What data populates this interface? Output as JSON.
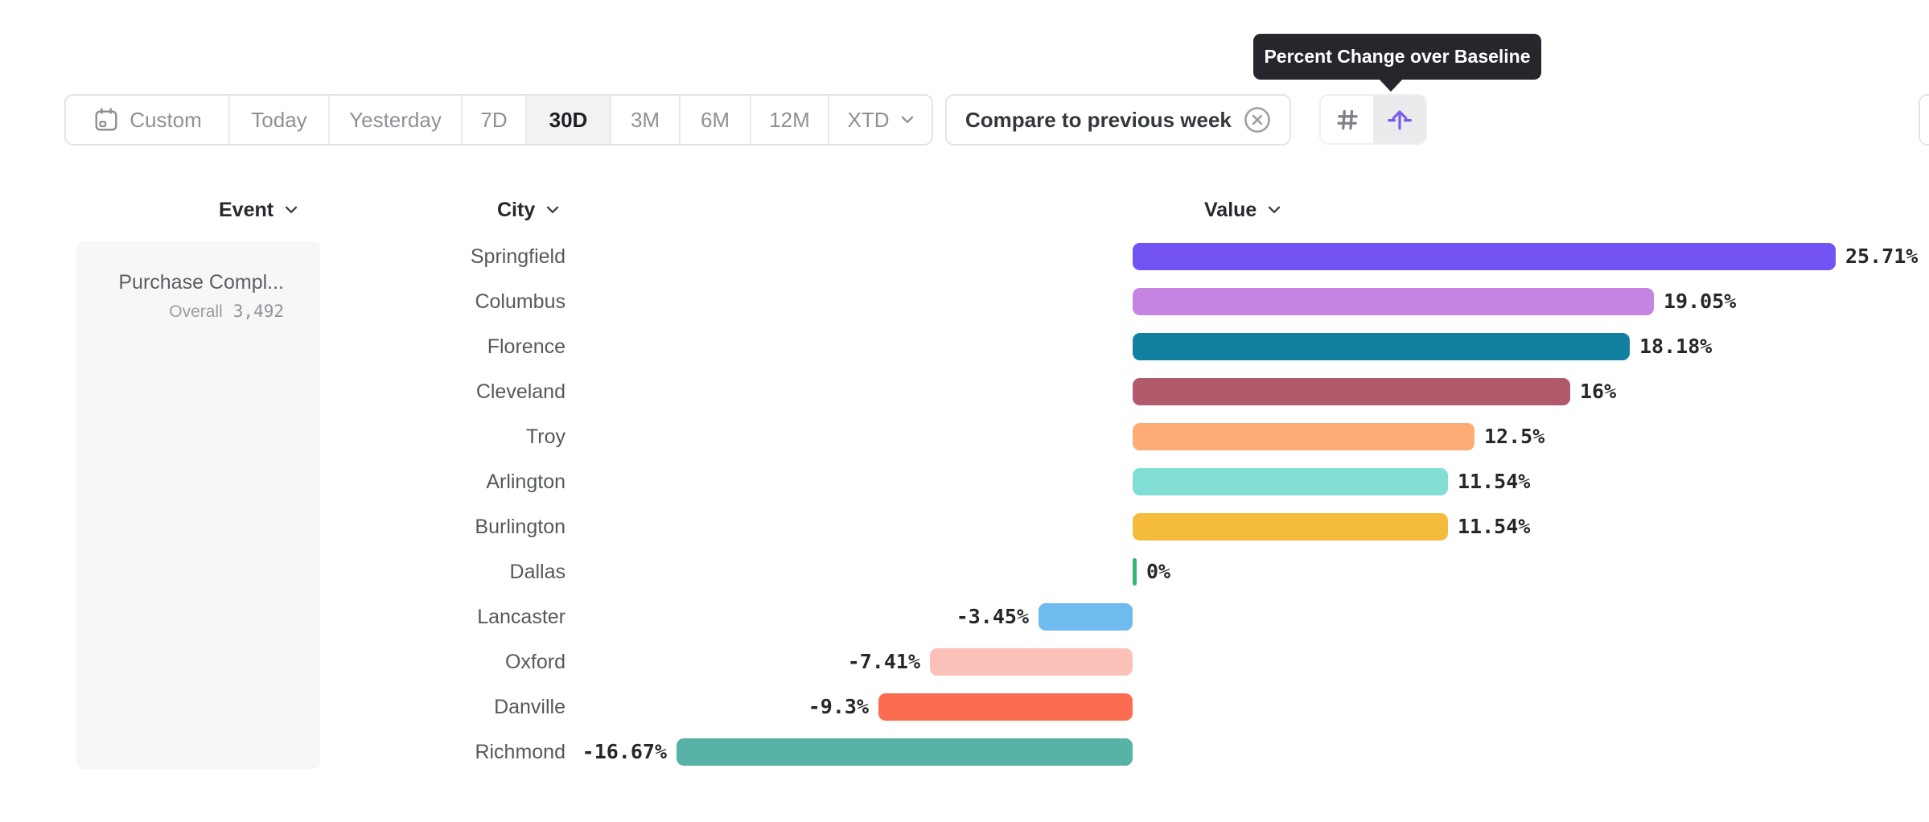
{
  "toolbar": {
    "date_ranges": [
      {
        "label": "Custom",
        "icon": "calendar-icon",
        "selected": false
      },
      {
        "label": "Today",
        "selected": false
      },
      {
        "label": "Yesterday",
        "selected": false
      },
      {
        "label": "7D",
        "selected": false
      },
      {
        "label": "30D",
        "selected": true
      },
      {
        "label": "3M",
        "selected": false
      },
      {
        "label": "6M",
        "selected": false
      },
      {
        "label": "12M",
        "selected": false
      },
      {
        "label": "XTD",
        "selected": false,
        "has_chevron": true
      }
    ],
    "compare_chip": {
      "label": "Compare to previous week",
      "close_icon": "circle-x-icon"
    },
    "view_toggles": [
      {
        "icon": "hash-icon",
        "selected": false
      },
      {
        "icon": "percent-change-icon",
        "selected": true,
        "accent_color": "#7a5cf0"
      }
    ]
  },
  "tooltip": {
    "text": "Percent Change over Baseline",
    "background": "#26272d"
  },
  "columns": {
    "event": "Event",
    "city": "City",
    "value": "Value"
  },
  "event_panel": {
    "title": "Purchase Compl...",
    "overall_label": "Overall",
    "overall_value": "3,492"
  },
  "chart_data": {
    "type": "bar",
    "orientation": "horizontal",
    "title": "Percent Change over Baseline",
    "unit": "%",
    "categories": [
      "Springfield",
      "Columbus",
      "Florence",
      "Cleveland",
      "Troy",
      "Arlington",
      "Burlington",
      "Dallas",
      "Lancaster",
      "Oxford",
      "Danville",
      "Richmond"
    ],
    "values": [
      25.71,
      19.05,
      18.18,
      16,
      12.5,
      11.54,
      11.54,
      0,
      -3.45,
      -7.41,
      -9.3,
      -16.67
    ],
    "labels": [
      "25.71%",
      "19.05%",
      "18.18%",
      "16%",
      "12.5%",
      "11.54%",
      "11.54%",
      "0%",
      "-3.45%",
      "-7.41%",
      "-9.3%",
      "-16.67%"
    ],
    "colors": [
      "#7252f3",
      "#c583e2",
      "#12809f",
      "#b15a6c",
      "#fcac74",
      "#80ded5",
      "#f5bc3b",
      "#30b572",
      "#6fbaef",
      "#fbc1b9",
      "#fb6c50",
      "#57b3a8"
    ],
    "xlim": [
      -16.67,
      25.71
    ],
    "grid": false,
    "legend": false
  }
}
